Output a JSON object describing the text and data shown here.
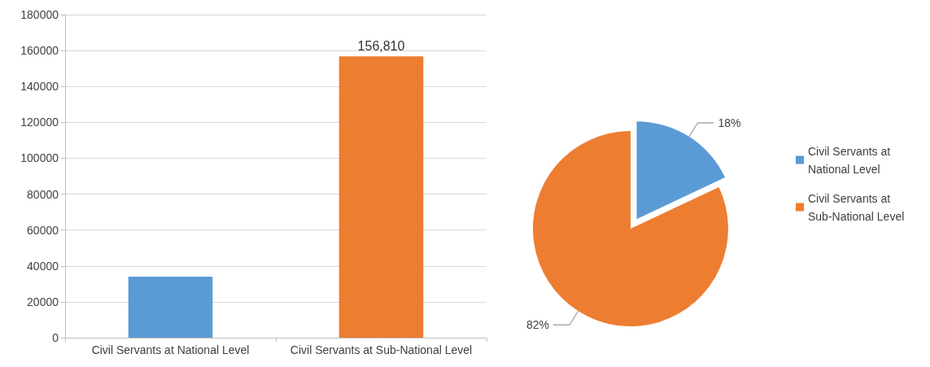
{
  "chart_data": [
    {
      "type": "bar",
      "categories": [
        "Civil Servants at National Level",
        "Civil Servants at Sub-National Level"
      ],
      "values": [
        34000,
        156810
      ],
      "colors": [
        "#5b9bd5",
        "#ed7d31"
      ],
      "value_labels": [
        null,
        "156,810"
      ],
      "ylim": [
        0,
        180000
      ],
      "yticks": [
        0,
        20000,
        40000,
        60000,
        80000,
        100000,
        120000,
        140000,
        160000,
        180000
      ],
      "grid": "y"
    },
    {
      "type": "pie",
      "categories": [
        "Civil Servants at National Level",
        "Civil Servants at Sub-National Level"
      ],
      "values": [
        18,
        82
      ],
      "colors": [
        "#5b9bd5",
        "#ed7d31"
      ],
      "value_labels": [
        "18%",
        "82%"
      ],
      "legend": "right"
    }
  ]
}
